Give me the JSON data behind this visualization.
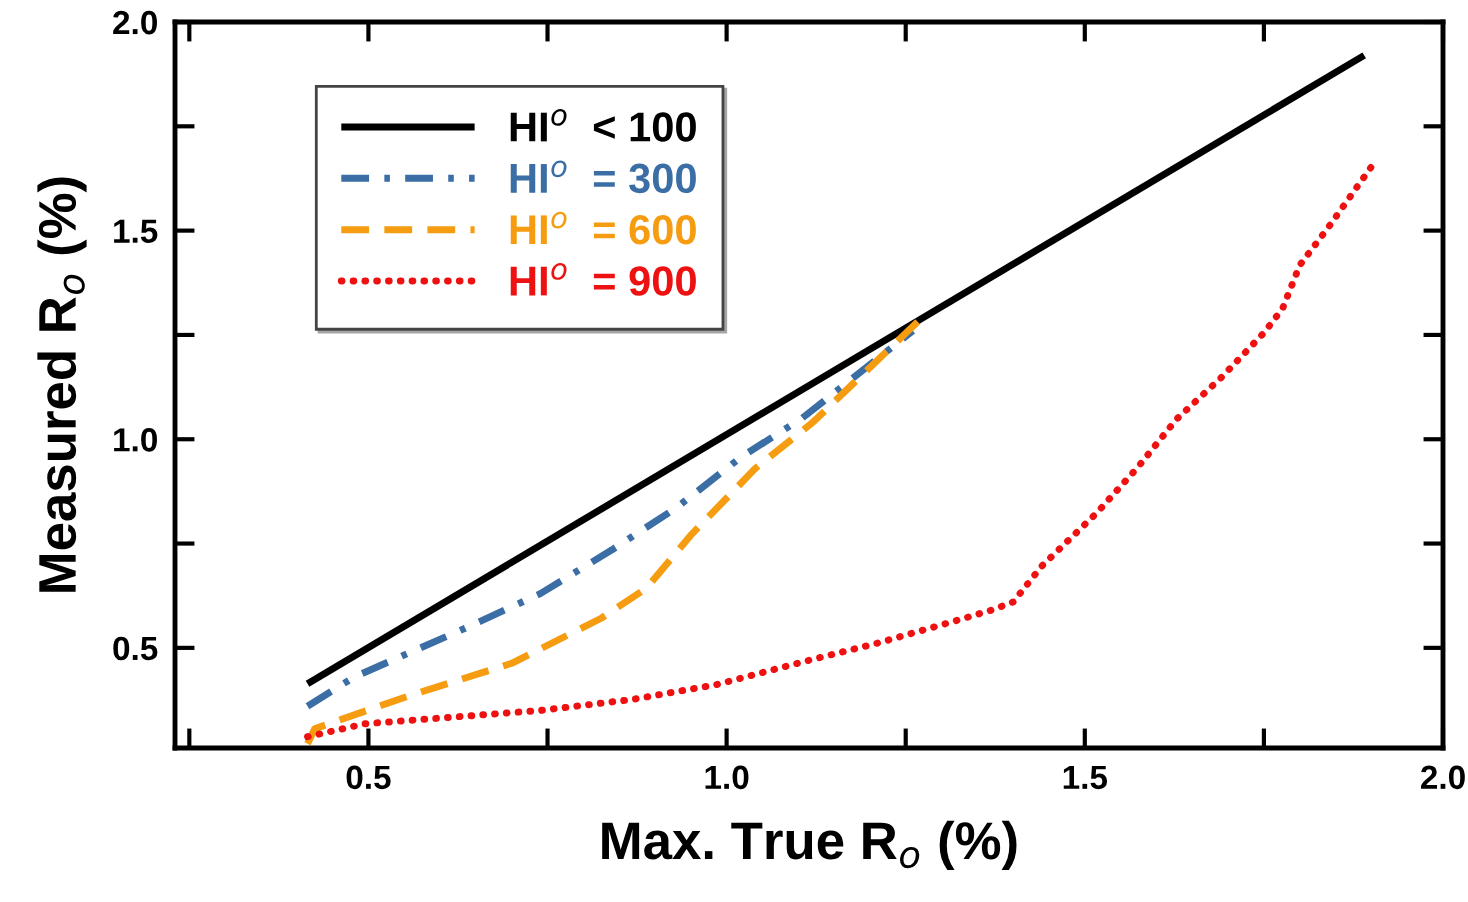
{
  "chart_data": {
    "type": "line",
    "xlabel": "Max. True R$_{o}$ (%)",
    "ylabel": "Measured R$_{o}$ (%)",
    "xlim": [
      0.23,
      2.0
    ],
    "ylim": [
      0.26,
      2.0
    ],
    "xticks": [
      0.5,
      {
        "value": 1.0,
        "label": "1.0"
      },
      1.5,
      {
        "value": 2.0,
        "label": "2.0"
      }
    ],
    "yticks": [
      0.5,
      {
        "value": 1.0,
        "label": "1.0"
      },
      1.5,
      {
        "value": 2.0,
        "label": "2.0"
      }
    ],
    "grid": false,
    "legend": "top left",
    "marker": "none",
    "series": [
      {
        "name": "HI$^{o}$  < 100",
        "color": "#000000",
        "line_style": "solid",
        "x": [
          0.415,
          1.89
        ],
        "values": [
          0.414,
          1.92
        ]
      },
      {
        "name": "HI$^{o}$  = 300",
        "color": "#3a6ea5",
        "line_style": "dashdot",
        "x": [
          0.415,
          0.48,
          0.635,
          0.74,
          0.84,
          0.93,
          1.02,
          1.105,
          1.26
        ],
        "values": [
          0.36,
          0.43,
          0.547,
          0.63,
          0.735,
          0.836,
          0.957,
          1.05,
          1.26
        ]
      },
      {
        "name": "HI$^{o}$  = 600",
        "color": "#f59c10",
        "line_style": "dashed",
        "x": [
          0.415,
          0.425,
          0.558,
          0.7,
          0.825,
          0.888,
          0.95,
          1.04,
          1.12,
          1.27
        ],
        "values": [
          0.27,
          0.306,
          0.386,
          0.463,
          0.571,
          0.643,
          0.77,
          0.93,
          1.04,
          1.287
        ]
      },
      {
        "name": "HI$^{o}$  = 900",
        "color": "#ee1111",
        "line_style": "dotted",
        "x": [
          0.415,
          0.495,
          0.74,
          0.867,
          0.986,
          1.126,
          1.21,
          1.31,
          1.369,
          1.4,
          1.44,
          1.517,
          1.574,
          1.628,
          1.69,
          1.75,
          1.776,
          1.8,
          1.84,
          1.9
        ],
        "values": [
          0.287,
          0.318,
          0.35,
          0.376,
          0.412,
          0.475,
          0.511,
          0.56,
          0.59,
          0.61,
          0.696,
          0.824,
          0.933,
          1.048,
          1.147,
          1.255,
          1.313,
          1.417,
          1.508,
          1.653
        ]
      }
    ]
  }
}
